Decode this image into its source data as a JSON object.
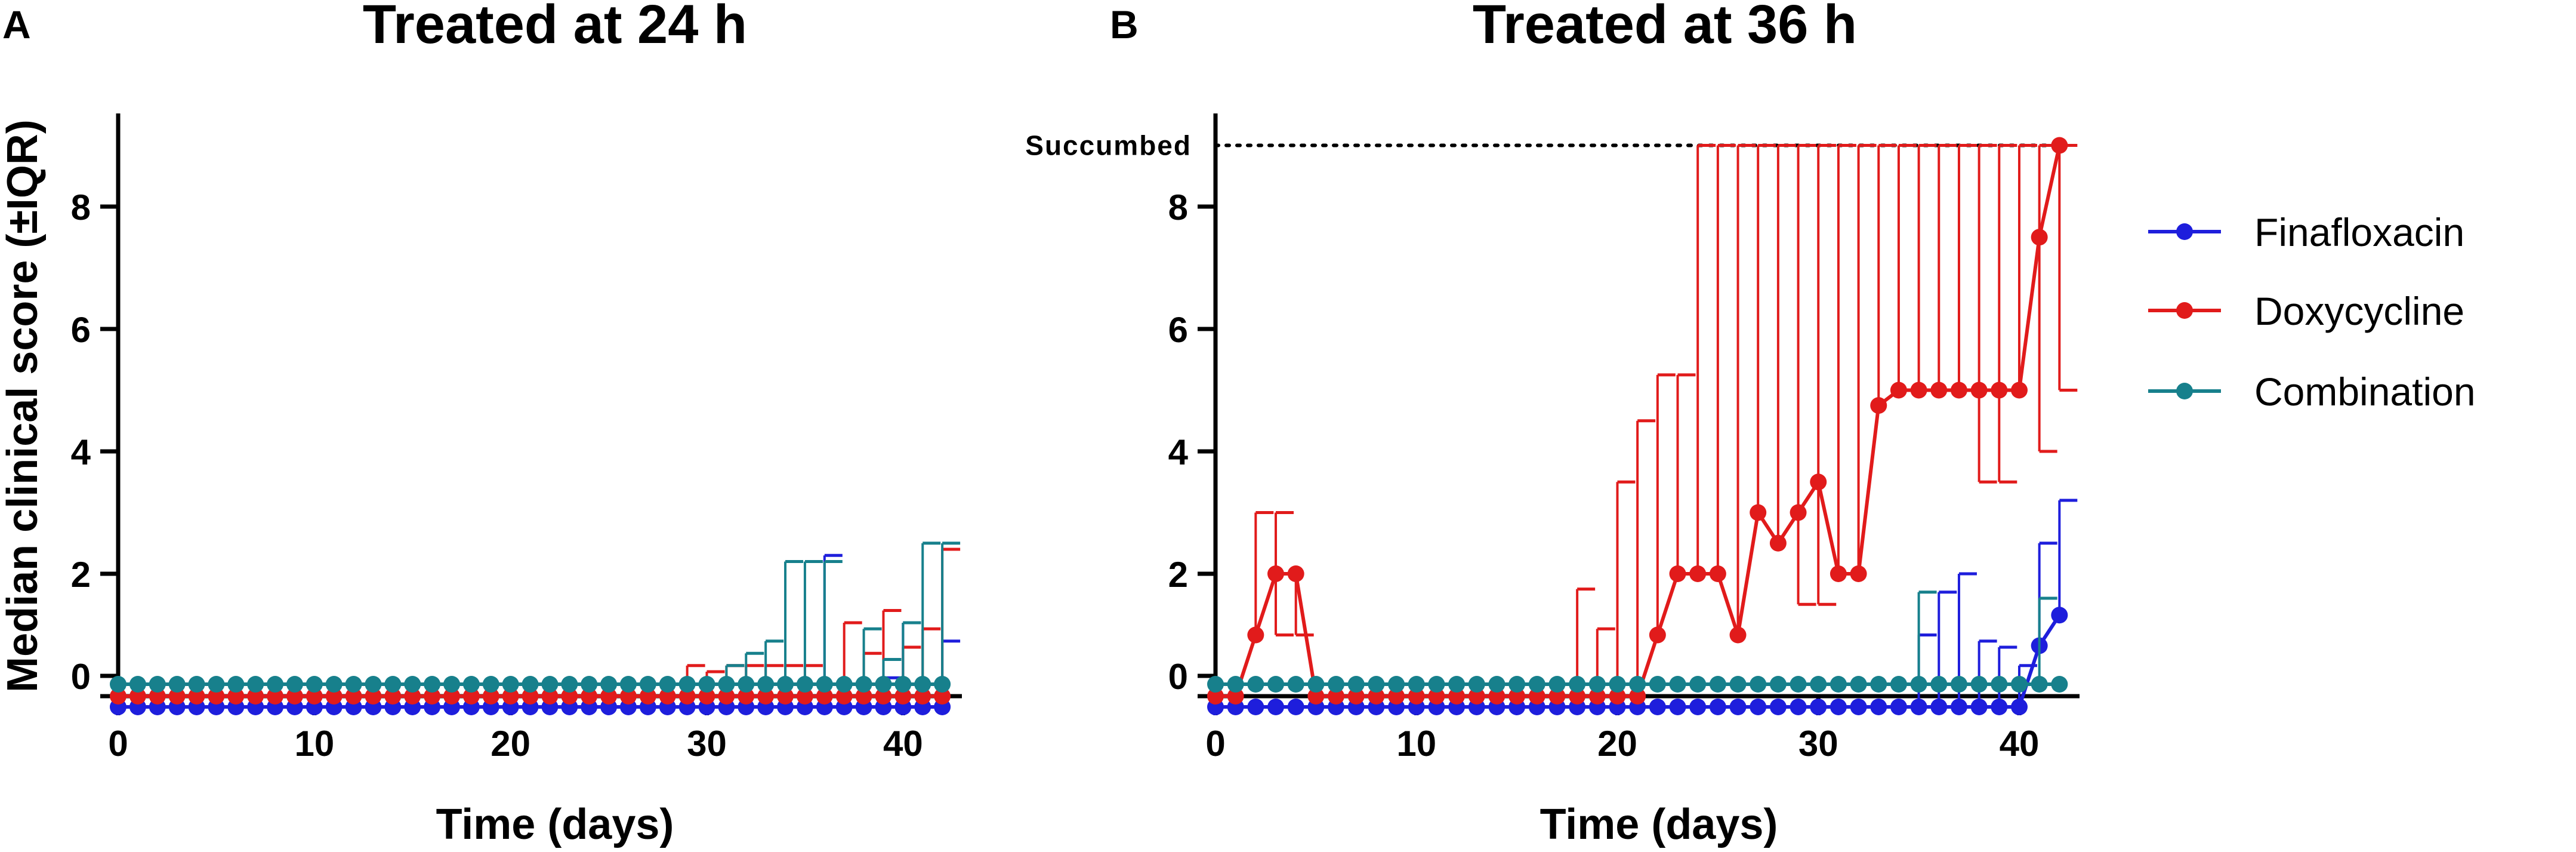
{
  "chart_data": [
    {
      "panel": "A",
      "type": "line",
      "title": "Treated at 24 h",
      "xlabel": "Time (days)",
      "ylabel": "Median clinical score (±IQR)",
      "xlim": [
        0,
        43
      ],
      "ylim": [
        -0.3,
        9.5
      ],
      "xticks": [
        0,
        10,
        20,
        30,
        40
      ],
      "yticks": [
        0,
        2,
        4,
        6,
        8
      ],
      "series": [
        {
          "name": "Finafloxacin",
          "color": "#1e1edc",
          "x": [
            0,
            1,
            2,
            3,
            4,
            5,
            6,
            7,
            8,
            9,
            10,
            11,
            12,
            13,
            14,
            15,
            16,
            17,
            18,
            19,
            20,
            21,
            22,
            23,
            24,
            25,
            26,
            27,
            28,
            29,
            30,
            31,
            32,
            33,
            34,
            35,
            36,
            37,
            38,
            39,
            40,
            41,
            42
          ],
          "y": [
            0,
            0,
            0,
            0,
            0,
            0,
            0,
            0,
            0,
            0,
            0,
            0,
            0,
            0,
            0,
            0,
            0,
            0,
            0,
            0,
            0,
            0,
            0,
            0,
            0,
            0,
            0,
            0,
            0,
            0,
            0,
            0,
            0,
            0,
            0,
            0,
            0,
            0,
            0,
            0,
            0,
            0,
            0
          ],
          "err_upper": {
            "36": 2.3,
            "39": 0.3,
            "40": 1.2,
            "42": 0.9
          }
        },
        {
          "name": "Doxycycline",
          "color": "#e11b1b",
          "x": [
            0,
            1,
            2,
            3,
            4,
            5,
            6,
            7,
            8,
            9,
            10,
            11,
            12,
            13,
            14,
            15,
            16,
            17,
            18,
            19,
            20,
            21,
            22,
            23,
            24,
            25,
            26,
            27,
            28,
            29,
            30,
            31,
            32,
            33,
            34,
            35,
            36,
            37,
            38,
            39,
            40,
            41,
            42
          ],
          "y": [
            0,
            0,
            0,
            0,
            0,
            0,
            0,
            0,
            0,
            0,
            0,
            0,
            0,
            0,
            0,
            0,
            0,
            0,
            0,
            0,
            0,
            0,
            0,
            0,
            0,
            0,
            0,
            0,
            0,
            0,
            0,
            0,
            0,
            0,
            0,
            0,
            0,
            0,
            0,
            0,
            0,
            0,
            0
          ],
          "err_upper": {
            "29": 0.5,
            "30": 0.4,
            "31": 0.5,
            "32": 0.5,
            "33": 0.5,
            "34": 0.5,
            "35": 0.5,
            "37": 1.2,
            "38": 0.7,
            "39": 1.4,
            "40": 0.8,
            "41": 1.1,
            "42": 2.4
          }
        },
        {
          "name": "Combination",
          "color": "#17808c",
          "x": [
            0,
            1,
            2,
            3,
            4,
            5,
            6,
            7,
            8,
            9,
            10,
            11,
            12,
            13,
            14,
            15,
            16,
            17,
            18,
            19,
            20,
            21,
            22,
            23,
            24,
            25,
            26,
            27,
            28,
            29,
            30,
            31,
            32,
            33,
            34,
            35,
            36,
            37,
            38,
            39,
            40,
            41,
            42
          ],
          "y": [
            0,
            0,
            0,
            0,
            0,
            0,
            0,
            0,
            0,
            0,
            0,
            0,
            0,
            0,
            0,
            0,
            0,
            0,
            0,
            0,
            0,
            0,
            0,
            0,
            0,
            0,
            0,
            0,
            0,
            0,
            0,
            0,
            0,
            0,
            0,
            0,
            0,
            0,
            0,
            0,
            0,
            0,
            0
          ],
          "err_upper": {
            "31": 0.5,
            "32": 0.7,
            "33": 0.9,
            "34": 2.2,
            "35": 2.2,
            "36": 2.2,
            "38": 1.1,
            "39": 0.6,
            "40": 1.2,
            "41": 2.5,
            "42": 2.5
          }
        }
      ]
    },
    {
      "panel": "B",
      "type": "line",
      "title": "Treated at 36 h",
      "xlabel": "Time (days)",
      "ylabel": "",
      "xlim": [
        0,
        43
      ],
      "ylim": [
        -0.3,
        9.5
      ],
      "xticks": [
        0,
        10,
        20,
        30,
        40
      ],
      "yticks": [
        0,
        2,
        4,
        6,
        8
      ],
      "reference_line": {
        "y": 9,
        "label": "Succumbed",
        "style": "dotted"
      },
      "series": [
        {
          "name": "Finafloxacin",
          "color": "#1e1edc",
          "x": [
            0,
            1,
            2,
            3,
            4,
            5,
            6,
            7,
            8,
            9,
            10,
            11,
            12,
            13,
            14,
            15,
            16,
            17,
            18,
            19,
            20,
            21,
            22,
            23,
            24,
            25,
            26,
            27,
            28,
            29,
            30,
            31,
            32,
            33,
            34,
            35,
            36,
            37,
            38,
            39,
            40,
            41,
            42
          ],
          "y": [
            0,
            0,
            0,
            0,
            0,
            0,
            0,
            0,
            0,
            0,
            0,
            0,
            0,
            0,
            0,
            0,
            0,
            0,
            0,
            0,
            0,
            0,
            0,
            0,
            0,
            0,
            0,
            0,
            0,
            0,
            0,
            0,
            0,
            0,
            0,
            0,
            0,
            0,
            0,
            0,
            0,
            1,
            1.5
          ],
          "err_upper": {
            "35": 1.0,
            "36": 1.7,
            "37": 2.0,
            "38": 0.9,
            "39": 0.8,
            "40": 0.5,
            "41": 2.5,
            "42": 3.2
          }
        },
        {
          "name": "Doxycycline",
          "color": "#e11b1b",
          "x": [
            0,
            1,
            2,
            3,
            4,
            5,
            6,
            7,
            8,
            9,
            10,
            11,
            12,
            13,
            14,
            15,
            16,
            17,
            18,
            19,
            20,
            21,
            22,
            23,
            24,
            25,
            26,
            27,
            28,
            29,
            30,
            31,
            32,
            33,
            34,
            35,
            36,
            37,
            38,
            39,
            40,
            41,
            42
          ],
          "y": [
            0,
            0,
            1,
            2,
            2,
            0,
            0,
            0,
            0,
            0,
            0,
            0,
            0,
            0,
            0,
            0,
            0,
            0,
            0,
            0,
            0,
            0,
            1,
            2,
            2,
            2,
            1,
            3,
            2.5,
            3,
            3.5,
            2,
            2,
            4.75,
            5,
            5,
            5,
            5,
            5,
            5,
            5,
            7.5,
            9
          ],
          "err_lower": {
            "3": 1.0,
            "4": 1.0,
            "29": 1.5,
            "30": 1.5,
            "38": 3.5,
            "39": 3.5,
            "41": 4.0,
            "42": 5.0
          },
          "err_upper": {
            "2": 3.0,
            "3": 3.0,
            "18": 1.75,
            "19": 1.1,
            "20": 3.5,
            "21": 4.5,
            "22": 5.25,
            "23": 5.25,
            "24": 9,
            "25": 9,
            "26": 9,
            "27": 9,
            "28": 9,
            "29": 9,
            "30": 9,
            "31": 9,
            "32": 9,
            "33": 9,
            "34": 9,
            "35": 9,
            "36": 9,
            "37": 9,
            "38": 9,
            "39": 9,
            "40": 9,
            "41": 9,
            "42": 9
          }
        },
        {
          "name": "Combination",
          "color": "#17808c",
          "x": [
            0,
            1,
            2,
            3,
            4,
            5,
            6,
            7,
            8,
            9,
            10,
            11,
            12,
            13,
            14,
            15,
            16,
            17,
            18,
            19,
            20,
            21,
            22,
            23,
            24,
            25,
            26,
            27,
            28,
            29,
            30,
            31,
            32,
            33,
            34,
            35,
            36,
            37,
            38,
            39,
            40,
            41,
            42
          ],
          "y": [
            0,
            0,
            0,
            0,
            0,
            0,
            0,
            0,
            0,
            0,
            0,
            0,
            0,
            0,
            0,
            0,
            0,
            0,
            0,
            0,
            0,
            0,
            0,
            0,
            0,
            0,
            0,
            0,
            0,
            0,
            0,
            0,
            0,
            0,
            0,
            0,
            0,
            0,
            0,
            0,
            0,
            0,
            0
          ],
          "err_upper": {
            "35": 1.7,
            "41": 1.6
          }
        }
      ]
    }
  ],
  "legend": {
    "position": "right",
    "entries": [
      {
        "name": "Finafloxacin",
        "color": "#1e1edc"
      },
      {
        "name": "Doxycycline",
        "color": "#e11b1b"
      },
      {
        "name": "Combination",
        "color": "#17808c"
      }
    ]
  }
}
